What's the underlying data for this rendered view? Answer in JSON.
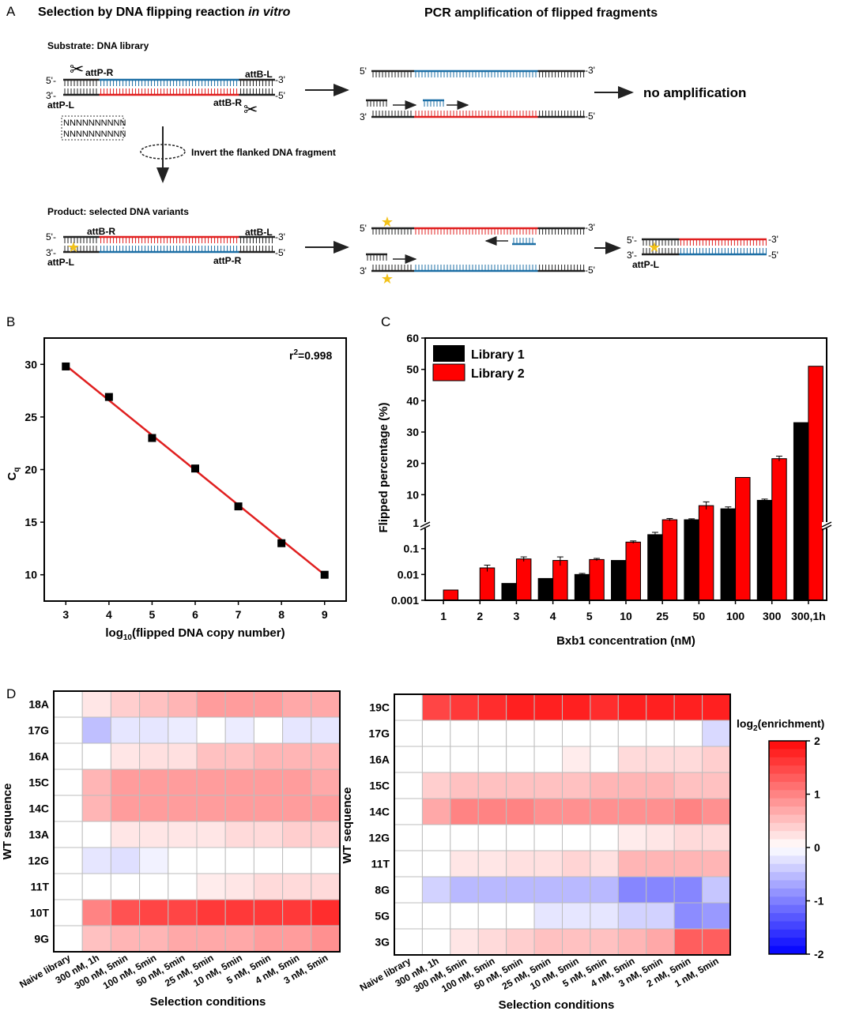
{
  "panelA": {
    "letter": "A",
    "title_left_pre": "Selection by DNA flipping reaction ",
    "title_left_italic": "in vitro",
    "title_right": "PCR amplification of flipped fragments",
    "substrate_label": "Substrate: DNA library",
    "product_label": "Product: selected DNA variants",
    "invert_label": "Invert the flanked DNA fragment",
    "no_amp": "no amplification",
    "prime5": "5'-",
    "prime3": "3'-",
    "end3": "-3'",
    "end5": "-5'",
    "five_prime": "5'",
    "three_prime": "3'",
    "attP_R": "attP-R",
    "attP_L": "attP-L",
    "attB_L": "attB-L",
    "attB_R": "attB-R",
    "nnn": "NNNNNNNNNN",
    "colors": {
      "blue": "#1d6fa5",
      "red": "#e02020",
      "black": "#222222",
      "star": "#f2c21b"
    }
  },
  "panelB": {
    "letter": "B",
    "chart_data": {
      "type": "scatter",
      "x": [
        3,
        4,
        5,
        6,
        7,
        8,
        9
      ],
      "y": [
        29.8,
        26.9,
        23.0,
        20.1,
        16.5,
        13.0,
        10.0
      ],
      "fit_line": {
        "x": [
          3,
          9
        ],
        "y": [
          29.9,
          10.0
        ]
      },
      "annotation_r": "r",
      "annotation_sup": "2",
      "annotation_val": "=0.998",
      "xlabel_pre": "log",
      "xlabel_sub": "10",
      "xlabel_post": "(flipped DNA copy number)",
      "ylabel_main": "C",
      "ylabel_sub": "q",
      "xlim": [
        2.5,
        9.5
      ],
      "ylim": [
        7.5,
        32.5
      ],
      "xticks": [
        "3",
        "4",
        "5",
        "6",
        "7",
        "8",
        "9"
      ],
      "yticks": [
        "10",
        "15",
        "20",
        "25",
        "30"
      ],
      "colors": {
        "points": "#000000",
        "line": "#e02020"
      }
    }
  },
  "panelC": {
    "letter": "C",
    "chart_data": {
      "type": "bar",
      "categories": [
        "1",
        "2",
        "3",
        "4",
        "5",
        "10",
        "25",
        "50",
        "100",
        "300",
        "300,1h"
      ],
      "series": [
        {
          "name": "Library 1",
          "color": "#000000",
          "values": [
            null,
            null,
            0.0045,
            0.007,
            0.01,
            0.035,
            0.35,
            2.0,
            5.5,
            8.2,
            33.0
          ],
          "errors": [
            null,
            null,
            null,
            null,
            0.001,
            null,
            0.08,
            0.3,
            0.6,
            0.4,
            null
          ]
        },
        {
          "name": "Library 2",
          "color": "#ff0000",
          "values": [
            0.0025,
            0.018,
            0.04,
            0.035,
            0.038,
            0.18,
            2.0,
            6.5,
            15.5,
            21.5,
            51.0
          ],
          "errors": [
            null,
            0.005,
            0.008,
            0.013,
            0.004,
            0.02,
            0.4,
            1.2,
            null,
            0.8,
            null
          ]
        }
      ],
      "xlabel": "Bxb1 concentration (nM)",
      "ylabel": "Flipped percentage (%)",
      "ylim": [
        0.001,
        60
      ],
      "scale": "log below 1, linear 1–60 (broken axis)",
      "yticks_log": [
        "0.001",
        "0.01",
        "0.1",
        "1"
      ],
      "yticks_lin": [
        "10",
        "20",
        "30",
        "40",
        "50",
        "60"
      ],
      "legend_position": "top-left"
    }
  },
  "panelD": {
    "letter": "D",
    "ylabel": "WT sequence",
    "xlabel": "Selection conditions",
    "colorbar_title_pre": "log",
    "colorbar_title_sub": "2",
    "colorbar_title_post": "(enrichment)",
    "colorbar_ticks": [
      "2",
      "1",
      "0",
      "-1",
      "-2"
    ],
    "colorbar_range": [
      -2,
      2
    ],
    "left": {
      "chart_data": {
        "type": "heatmap",
        "rows": [
          "18A",
          "17G",
          "16A",
          "15C",
          "14C",
          "13A",
          "12G",
          "11T",
          "10T",
          "9G"
        ],
        "cols": [
          "Naive library",
          "300 nM, 1h",
          "300 nM, 5min",
          "100 nM, 5min",
          "50 nM, 5min",
          "25 nM, 5min",
          "10 nM, 5min",
          "5 nM, 5min",
          "4 nM, 5min",
          "3 nM, 5min"
        ],
        "values": [
          [
            0,
            0.2,
            0.4,
            0.5,
            0.6,
            0.8,
            0.8,
            0.8,
            0.7,
            0.7
          ],
          [
            0,
            -0.5,
            -0.2,
            -0.2,
            -0.15,
            0,
            -0.15,
            0,
            -0.2,
            -0.2
          ],
          [
            0,
            0,
            0.2,
            0.25,
            0.25,
            0.5,
            0.5,
            0.6,
            0.6,
            0.6
          ],
          [
            0,
            0.6,
            0.8,
            0.8,
            0.8,
            0.8,
            0.8,
            0.8,
            0.8,
            0.7
          ],
          [
            0,
            0.6,
            0.8,
            0.8,
            0.8,
            0.8,
            0.8,
            0.8,
            0.8,
            0.8
          ],
          [
            0,
            0,
            0.2,
            0.2,
            0.2,
            0.2,
            0.3,
            0.3,
            0.4,
            0.4
          ],
          [
            0,
            -0.2,
            -0.25,
            -0.1,
            0,
            0,
            0,
            0,
            0,
            0
          ],
          [
            0,
            0,
            0,
            0,
            0,
            0.15,
            0.2,
            0.3,
            0.3,
            0.3
          ],
          [
            0,
            1.0,
            1.4,
            1.5,
            1.5,
            1.6,
            1.6,
            1.6,
            1.6,
            1.7
          ],
          [
            0,
            0.5,
            0.6,
            0.6,
            0.7,
            0.7,
            0.7,
            0.8,
            0.8,
            0.9
          ]
        ]
      }
    },
    "right": {
      "chart_data": {
        "type": "heatmap",
        "rows": [
          "19C",
          "17G",
          "16A",
          "15C",
          "14C",
          "12G",
          "11T",
          "8G",
          "5G",
          "3G"
        ],
        "cols": [
          "Naive library",
          "300 nM, 1h",
          "300 nM, 5min",
          "100 nM, 5min",
          "50 nM, 5min",
          "25 nM, 5min",
          "10 nM, 5min",
          "5 nM, 5min",
          "4 nM, 5min",
          "3 nM, 5min",
          "2 nM, 5min",
          "1 nM, 5min"
        ],
        "values": [
          [
            0,
            1.5,
            1.6,
            1.7,
            1.8,
            1.8,
            1.8,
            1.7,
            1.8,
            1.8,
            1.8,
            1.8
          ],
          [
            0,
            0,
            0,
            0,
            0,
            0,
            0,
            0,
            0,
            0,
            0,
            -0.3
          ],
          [
            0,
            0,
            0,
            0,
            0,
            0,
            0.15,
            0,
            0.3,
            0.3,
            0.3,
            0.4
          ],
          [
            0,
            0.4,
            0.5,
            0.5,
            0.5,
            0.5,
            0.5,
            0.6,
            0.6,
            0.6,
            0.5,
            0.5
          ],
          [
            0,
            0.7,
            1.0,
            1.0,
            1.0,
            0.9,
            0.9,
            0.9,
            0.9,
            0.9,
            1.0,
            0.9
          ],
          [
            0,
            0,
            0,
            0,
            0,
            0,
            0,
            0,
            0.15,
            0.2,
            0.3,
            0.3
          ],
          [
            0,
            0,
            0.2,
            0.2,
            0.25,
            0.25,
            0.35,
            0.25,
            0.6,
            0.6,
            0.6,
            0.6
          ],
          [
            0,
            -0.35,
            -0.55,
            -0.55,
            -0.55,
            -0.55,
            -0.55,
            -0.55,
            -0.95,
            -0.95,
            -0.95,
            -0.45
          ],
          [
            0,
            0,
            0,
            0,
            0,
            -0.2,
            -0.2,
            -0.2,
            -0.35,
            -0.35,
            -0.9,
            -0.8
          ],
          [
            0,
            0,
            0.2,
            0.3,
            0.4,
            0.5,
            0.5,
            0.5,
            0.6,
            0.7,
            1.3,
            1.3
          ]
        ]
      }
    }
  }
}
